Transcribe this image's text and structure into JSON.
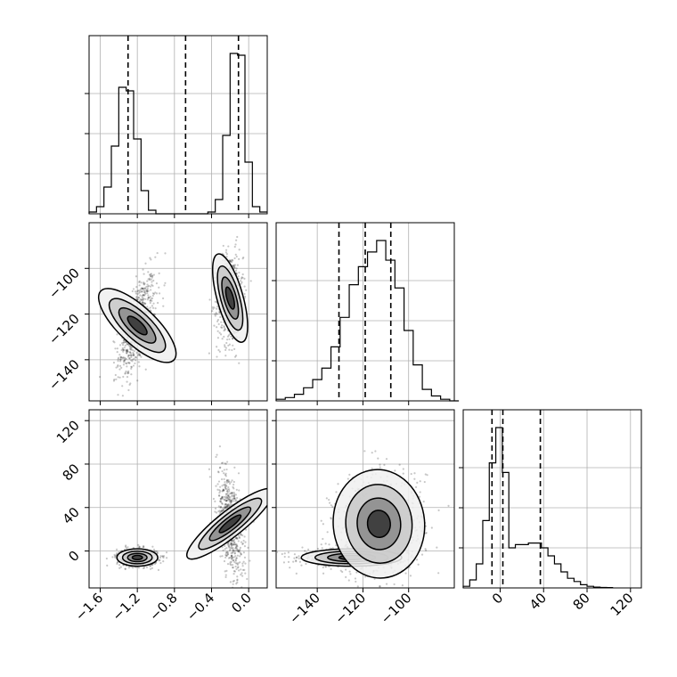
{
  "chart_data": {
    "type": "corner",
    "grid": true,
    "axes": {
      "x_param0": {
        "lim": [
          -1.72,
          0.2
        ],
        "ticks": [
          -1.6,
          -1.2,
          -0.8,
          -0.4,
          0.0
        ],
        "tick_labels": [
          "−1.6",
          "−1.2",
          "−0.8",
          "−0.4",
          "0.0"
        ]
      },
      "param1": {
        "lim": [
          -158,
          -80
        ],
        "ticks": [
          -140,
          -120,
          -100
        ],
        "tick_labels": [
          "−140",
          "−120",
          "−100"
        ]
      },
      "param2": {
        "lim": [
          -34,
          130
        ],
        "ticks": [
          0,
          40,
          80,
          120
        ],
        "tick_labels": [
          "0",
          "40",
          "80",
          "120"
        ]
      }
    },
    "hist_0": {
      "bin_width": 0.08,
      "bins_left": [
        -1.72,
        -1.64,
        -1.56,
        -1.48,
        -1.4,
        -1.32,
        -1.24,
        -1.16,
        -1.08,
        -1.0,
        -0.92,
        -0.84,
        -0.76,
        -0.68,
        -0.6,
        -0.52,
        -0.44,
        -0.36,
        -0.28,
        -0.2,
        -0.12,
        -0.04,
        0.04,
        0.12
      ],
      "counts": [
        0.01,
        0.04,
        0.15,
        0.38,
        0.71,
        0.69,
        0.42,
        0.13,
        0.02,
        0,
        0,
        0,
        0,
        0,
        0,
        0,
        0.01,
        0.08,
        0.44,
        0.9,
        0.89,
        0.29,
        0.04,
        0.01
      ],
      "quantiles": [
        -1.3,
        -0.68,
        -0.11
      ]
    },
    "hist_1": {
      "bin_width": 4,
      "bins_left": [
        -158,
        -154,
        -150,
        -146,
        -142,
        -138,
        -134,
        -130,
        -126,
        -122,
        -118,
        -114,
        -110,
        -106,
        -102,
        -98,
        -94,
        -90,
        -86,
        -82
      ],
      "counts": [
        0.01,
        0.02,
        0.04,
        0.08,
        0.13,
        0.2,
        0.33,
        0.51,
        0.71,
        0.82,
        0.91,
        0.98,
        0.86,
        0.69,
        0.43,
        0.22,
        0.07,
        0.03,
        0.01,
        0
      ],
      "quantiles": [
        -130.5,
        -119.0,
        -107.8
      ]
    },
    "hist_2": {
      "bin_width": 6,
      "bins_left": [
        -34,
        -28,
        -22,
        -16,
        -10,
        -4,
        2,
        8,
        14,
        20,
        26,
        32,
        38,
        44,
        50,
        56,
        62,
        68,
        74,
        80,
        86,
        92,
        98
      ],
      "counts": [
        0.01,
        0.05,
        0.15,
        0.42,
        0.78,
        1.0,
        0.72,
        0.25,
        0.27,
        0.27,
        0.28,
        0.28,
        0.25,
        0.2,
        0.15,
        0.1,
        0.06,
        0.04,
        0.02,
        0.01,
        0.005,
        0.003,
        0.002
      ],
      "quantiles": [
        -7.5,
        2.5,
        37.0
      ]
    },
    "scatter_10": {
      "clusters": [
        {
          "mean": [
            -1.2,
            -125
          ],
          "sd": [
            0.1,
            11
          ],
          "corr": 0.6
        },
        {
          "mean": [
            -0.2,
            -113
          ],
          "sd": [
            0.07,
            10
          ],
          "corr": 0.1
        }
      ]
    },
    "scatter_20": {
      "clusters": [
        {
          "mean": [
            -1.2,
            -6
          ],
          "sd": [
            0.11,
            4
          ],
          "corr": 0.0
        },
        {
          "mean": [
            -0.2,
            25
          ],
          "sd": [
            0.07,
            25
          ],
          "corr": -0.5
        }
      ]
    },
    "scatter_21": {
      "clusters": [
        {
          "mean": [
            -125,
            -6
          ],
          "sd": [
            11,
            4
          ],
          "corr": 0.0
        },
        {
          "mean": [
            -113,
            25
          ],
          "sd": [
            10,
            25
          ],
          "corr": 0.1
        }
      ]
    }
  }
}
